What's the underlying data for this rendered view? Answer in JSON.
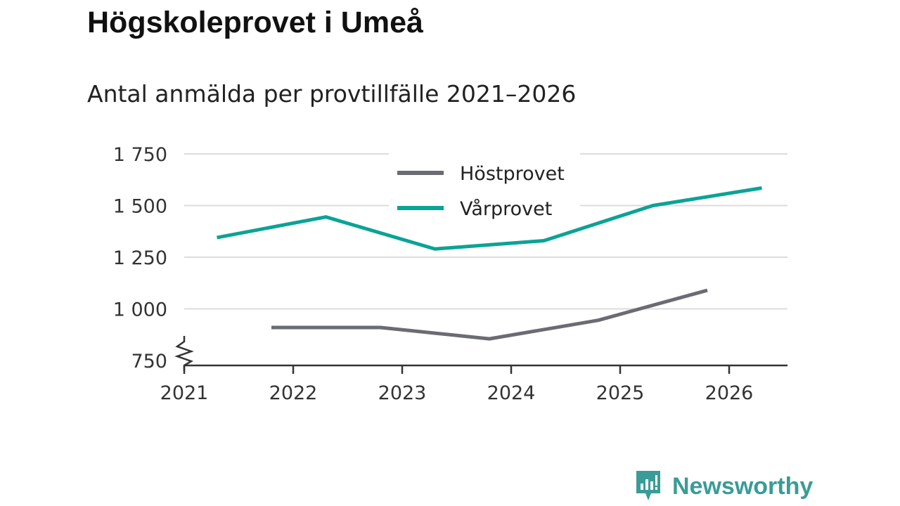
{
  "header": {
    "title": "Högskoleprovet i Umeå",
    "subtitle": "Antal anmälda per provtillfälle 2021–2026"
  },
  "brand": {
    "name": "Newsworthy",
    "color": "#3a9c96",
    "icon": "newsworthy-logo-icon"
  },
  "chart_data": {
    "type": "line",
    "title": "Högskoleprovet i Umeå",
    "subtitle": "Antal anmälda per provtillfälle 2021–2026",
    "xlabel": "",
    "ylabel": "",
    "x_ticks": [
      "2021",
      "2022",
      "2023",
      "2024",
      "2025",
      "2026"
    ],
    "y_ticks": [
      750,
      1000,
      1250,
      1500,
      1750
    ],
    "y_tick_labels": [
      "750",
      "1 000",
      "1 250",
      "1 500",
      "1 750"
    ],
    "ylim": [
      730,
      1760
    ],
    "y_axis_break": true,
    "grid": true,
    "legend": "top-center",
    "series": [
      {
        "name": "Höstprovet",
        "color": "#6b6b73",
        "x": [
          2021.8,
          2022.8,
          2023.8,
          2024.8,
          2025.8
        ],
        "values": [
          910,
          910,
          855,
          945,
          1090
        ]
      },
      {
        "name": "Vårprovet",
        "color": "#0ba396",
        "x": [
          2021.3,
          2022.3,
          2023.3,
          2024.3,
          2025.3,
          2026.3
        ],
        "values": [
          1345,
          1445,
          1290,
          1330,
          1500,
          1585
        ]
      }
    ]
  }
}
